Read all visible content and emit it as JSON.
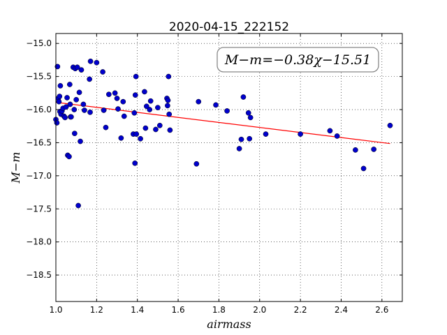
{
  "chart_data": {
    "type": "scatter",
    "title": "2020-04-15_222152",
    "xlabel": "airmass",
    "ylabel": "M−m",
    "xlim": [
      1.0,
      2.7
    ],
    "ylim": [
      -18.9,
      -14.85
    ],
    "x_ticks": [
      1.0,
      1.2,
      1.4,
      1.6,
      1.8,
      2.0,
      2.2,
      2.4,
      2.6
    ],
    "x_tick_labels": [
      "1.0",
      "1.2",
      "1.4",
      "1.6",
      "1.8",
      "2.0",
      "2.2",
      "2.4",
      "2.6"
    ],
    "y_ticks": [
      -15.0,
      -15.5,
      -16.0,
      -16.5,
      -17.0,
      -17.5,
      -18.0,
      -18.5
    ],
    "y_tick_labels": [
      "−15.0",
      "−15.5",
      "−16.0",
      "−16.5",
      "−17.0",
      "−17.5",
      "−18.0",
      "−18.5"
    ],
    "grid": true,
    "annotation": "M−m=−0.38χ−15.51",
    "fit": {
      "slope": -0.38,
      "intercept": -15.51,
      "x_range": [
        1.0,
        2.64
      ],
      "color": "#ff0000"
    },
    "point_color": "#0000cc",
    "points": [
      {
        "x": 1.0,
        "y": -16.15
      },
      {
        "x": 1.005,
        "y": -16.2
      },
      {
        "x": 1.008,
        "y": -15.35
      },
      {
        "x": 1.012,
        "y": -15.83
      },
      {
        "x": 1.015,
        "y": -15.88
      },
      {
        "x": 1.018,
        "y": -15.8
      },
      {
        "x": 1.02,
        "y": -16.03
      },
      {
        "x": 1.022,
        "y": -15.64
      },
      {
        "x": 1.025,
        "y": -16.07
      },
      {
        "x": 1.03,
        "y": -16.02
      },
      {
        "x": 1.035,
        "y": -15.98
      },
      {
        "x": 1.04,
        "y": -16.1
      },
      {
        "x": 1.045,
        "y": -16.12
      },
      {
        "x": 1.05,
        "y": -15.96
      },
      {
        "x": 1.055,
        "y": -15.82
      },
      {
        "x": 1.058,
        "y": -16.69
      },
      {
        "x": 1.065,
        "y": -16.71
      },
      {
        "x": 1.068,
        "y": -15.62
      },
      {
        "x": 1.07,
        "y": -15.92
      },
      {
        "x": 1.072,
        "y": -16.11
      },
      {
        "x": 1.075,
        "y": -16.11
      },
      {
        "x": 1.085,
        "y": -15.36
      },
      {
        "x": 1.09,
        "y": -16.0
      },
      {
        "x": 1.092,
        "y": -16.36
      },
      {
        "x": 1.095,
        "y": -15.38
      },
      {
        "x": 1.1,
        "y": -15.85
      },
      {
        "x": 1.105,
        "y": -15.36
      },
      {
        "x": 1.11,
        "y": -17.45
      },
      {
        "x": 1.115,
        "y": -15.74
      },
      {
        "x": 1.12,
        "y": -16.48
      },
      {
        "x": 1.125,
        "y": -15.4
      },
      {
        "x": 1.135,
        "y": -15.92
      },
      {
        "x": 1.14,
        "y": -16.01
      },
      {
        "x": 1.165,
        "y": -15.54
      },
      {
        "x": 1.168,
        "y": -16.04
      },
      {
        "x": 1.17,
        "y": -15.27
      },
      {
        "x": 1.2,
        "y": -15.29
      },
      {
        "x": 1.23,
        "y": -15.43
      },
      {
        "x": 1.235,
        "y": -16.01
      },
      {
        "x": 1.245,
        "y": -16.27
      },
      {
        "x": 1.26,
        "y": -15.77
      },
      {
        "x": 1.29,
        "y": -15.75
      },
      {
        "x": 1.3,
        "y": -15.83
      },
      {
        "x": 1.305,
        "y": -15.99
      },
      {
        "x": 1.32,
        "y": -16.43
      },
      {
        "x": 1.33,
        "y": -15.88
      },
      {
        "x": 1.335,
        "y": -16.1
      },
      {
        "x": 1.38,
        "y": -16.37
      },
      {
        "x": 1.385,
        "y": -16.05
      },
      {
        "x": 1.388,
        "y": -16.81
      },
      {
        "x": 1.39,
        "y": -15.78
      },
      {
        "x": 1.393,
        "y": -15.5
      },
      {
        "x": 1.395,
        "y": -16.37
      },
      {
        "x": 1.415,
        "y": -16.44
      },
      {
        "x": 1.435,
        "y": -15.73
      },
      {
        "x": 1.44,
        "y": -16.28
      },
      {
        "x": 1.445,
        "y": -15.95
      },
      {
        "x": 1.46,
        "y": -16.0
      },
      {
        "x": 1.465,
        "y": -15.87
      },
      {
        "x": 1.49,
        "y": -16.3
      },
      {
        "x": 1.5,
        "y": -15.97
      },
      {
        "x": 1.51,
        "y": -16.24
      },
      {
        "x": 1.545,
        "y": -15.83
      },
      {
        "x": 1.548,
        "y": -15.94
      },
      {
        "x": 1.55,
        "y": -15.86
      },
      {
        "x": 1.553,
        "y": -15.5
      },
      {
        "x": 1.556,
        "y": -16.07
      },
      {
        "x": 1.56,
        "y": -16.31
      },
      {
        "x": 1.69,
        "y": -16.82
      },
      {
        "x": 1.7,
        "y": -15.88
      },
      {
        "x": 1.785,
        "y": -15.93
      },
      {
        "x": 1.84,
        "y": -16.02
      },
      {
        "x": 1.9,
        "y": -16.59
      },
      {
        "x": 1.91,
        "y": -16.45
      },
      {
        "x": 1.92,
        "y": -15.81
      },
      {
        "x": 1.945,
        "y": -16.05
      },
      {
        "x": 1.95,
        "y": -16.44
      },
      {
        "x": 1.955,
        "y": -16.12
      },
      {
        "x": 2.03,
        "y": -16.37
      },
      {
        "x": 2.2,
        "y": -16.37
      },
      {
        "x": 2.345,
        "y": -16.32
      },
      {
        "x": 2.38,
        "y": -16.4
      },
      {
        "x": 2.47,
        "y": -16.61
      },
      {
        "x": 2.51,
        "y": -16.89
      },
      {
        "x": 2.56,
        "y": -16.6
      },
      {
        "x": 2.64,
        "y": -16.24
      }
    ]
  }
}
